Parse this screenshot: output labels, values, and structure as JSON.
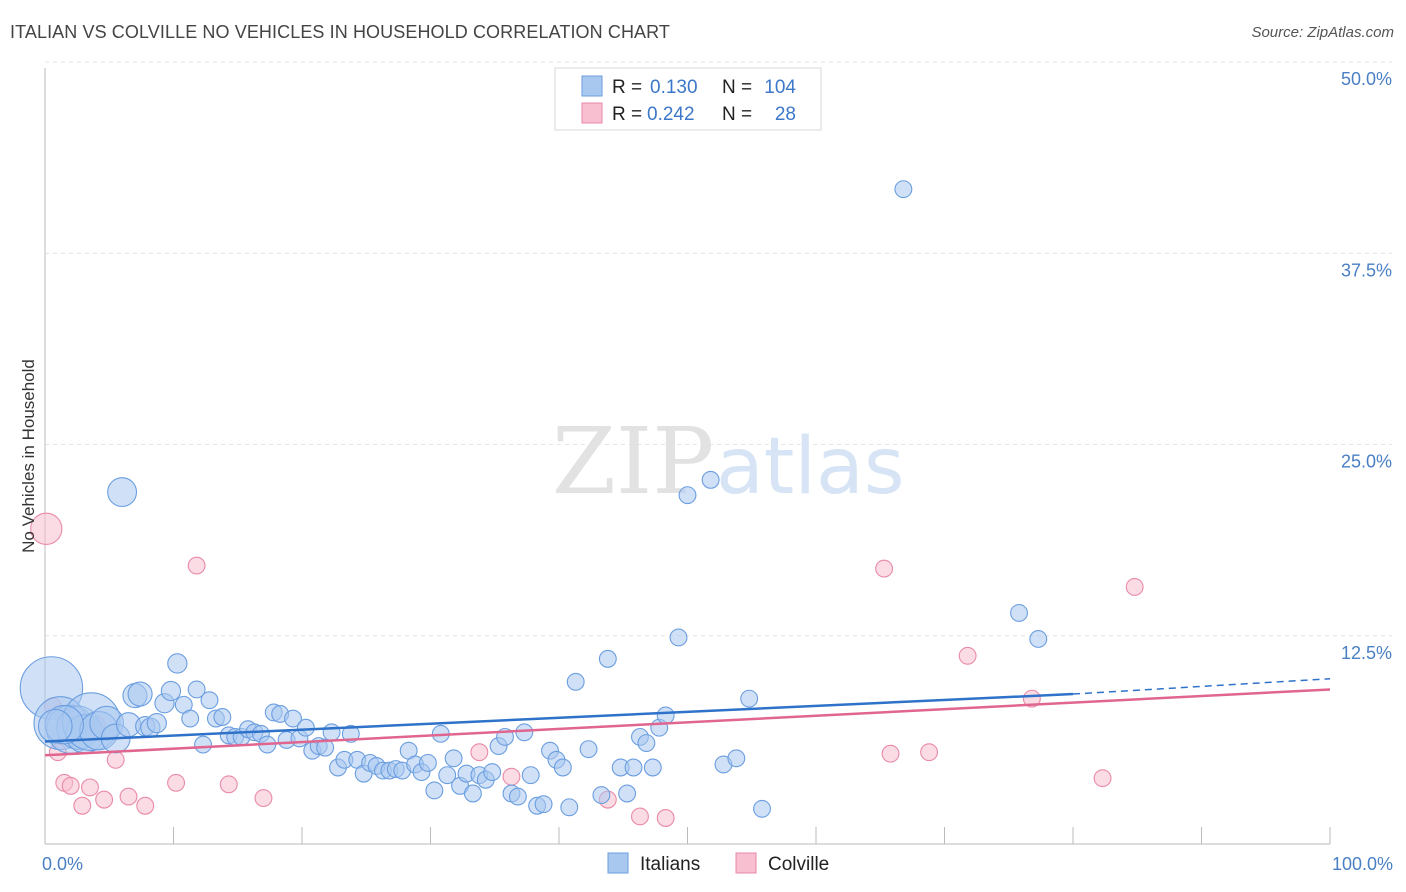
{
  "header": {
    "title": "ITALIAN VS COLVILLE NO VEHICLES IN HOUSEHOLD CORRELATION CHART",
    "source": "Source: ZipAtlas.com"
  },
  "watermark": {
    "zip": "ZIP",
    "atlas": "atlas"
  },
  "legend": {
    "rows": [
      {
        "r_label": "R =",
        "r_value": "0.130",
        "n_label": "N =",
        "n_value": "104",
        "color": "#a9c8f0",
        "stroke": "#6b9ee0"
      },
      {
        "r_label": "R =",
        "r_value": "0.242",
        "n_label": "N =",
        "n_value": "28",
        "color": "#f7bfd0",
        "stroke": "#e98aa8"
      }
    ]
  },
  "bottom_legend": [
    "Italians",
    "Colville"
  ],
  "chart_data": {
    "type": "scatter",
    "title": "ITALIAN VS COLVILLE NO VEHICLES IN HOUSEHOLD CORRELATION CHART",
    "xlabel": "",
    "ylabel": "No Vehicles in Household",
    "xlim": [
      0,
      100
    ],
    "ylim": [
      0,
      50
    ],
    "x_tick_labels": [
      "0.0%",
      "100.0%"
    ],
    "y_tick_labels": [
      "12.5%",
      "25.0%",
      "37.5%",
      "50.0%"
    ],
    "y_ticks": [
      12.5,
      25.0,
      37.5,
      50.0
    ],
    "series": [
      {
        "name": "Italians",
        "color": "#a9c8f0",
        "stroke": "#6b9ee0",
        "line_color": "#2f72c9",
        "trend": {
          "x0": 0,
          "y0": 6.7,
          "x1": 80,
          "y1": 9.8,
          "x_ext": 100,
          "y_ext": 10.8
        },
        "points": [
          [
            0.5,
            10.2,
            2.6
          ],
          [
            1.2,
            7.9,
            2.2
          ],
          [
            2.0,
            7.5,
            2.0
          ],
          [
            2.6,
            7.6,
            1.8
          ],
          [
            3.1,
            7.2,
            1.6
          ],
          [
            3.6,
            8.0,
            2.4
          ],
          [
            4.2,
            7.4,
            1.6
          ],
          [
            4.8,
            7.9,
            1.4
          ],
          [
            5.5,
            6.9,
            1.2
          ],
          [
            6.0,
            23.0,
            1.2
          ],
          [
            6.5,
            7.8,
            1.0
          ],
          [
            7.0,
            9.7,
            1.0
          ],
          [
            7.4,
            9.8,
            1.0
          ],
          [
            7.8,
            7.7,
            0.8
          ],
          [
            8.2,
            7.6,
            0.8
          ],
          [
            8.7,
            7.9,
            0.8
          ],
          [
            9.3,
            9.2,
            0.8
          ],
          [
            9.8,
            10.0,
            0.8
          ],
          [
            10.3,
            11.8,
            0.8
          ],
          [
            10.8,
            9.1,
            0.7
          ],
          [
            11.3,
            8.2,
            0.7
          ],
          [
            11.8,
            10.1,
            0.7
          ],
          [
            12.3,
            6.5,
            0.7
          ],
          [
            12.8,
            9.4,
            0.7
          ],
          [
            13.3,
            8.2,
            0.7
          ],
          [
            13.8,
            8.3,
            0.7
          ],
          [
            14.3,
            7.1,
            0.7
          ],
          [
            14.8,
            7.0,
            0.7
          ],
          [
            15.3,
            7.0,
            0.7
          ],
          [
            15.8,
            7.5,
            0.7
          ],
          [
            16.3,
            7.3,
            0.7
          ],
          [
            16.8,
            7.2,
            0.7
          ],
          [
            17.3,
            6.5,
            0.7
          ],
          [
            17.8,
            8.6,
            0.7
          ],
          [
            18.3,
            8.5,
            0.7
          ],
          [
            18.8,
            6.8,
            0.7
          ],
          [
            19.3,
            8.2,
            0.7
          ],
          [
            19.8,
            6.9,
            0.7
          ],
          [
            20.3,
            7.6,
            0.7
          ],
          [
            20.8,
            6.1,
            0.7
          ],
          [
            21.3,
            6.4,
            0.7
          ],
          [
            21.8,
            6.3,
            0.7
          ],
          [
            22.3,
            7.3,
            0.7
          ],
          [
            22.8,
            5.0,
            0.7
          ],
          [
            23.3,
            5.5,
            0.7
          ],
          [
            23.8,
            7.2,
            0.7
          ],
          [
            24.3,
            5.5,
            0.7
          ],
          [
            24.8,
            4.6,
            0.7
          ],
          [
            25.3,
            5.3,
            0.7
          ],
          [
            25.8,
            5.1,
            0.7
          ],
          [
            26.3,
            4.8,
            0.7
          ],
          [
            26.8,
            4.8,
            0.7
          ],
          [
            27.3,
            4.9,
            0.7
          ],
          [
            27.8,
            4.8,
            0.7
          ],
          [
            28.3,
            6.1,
            0.7
          ],
          [
            28.8,
            5.2,
            0.7
          ],
          [
            29.3,
            4.7,
            0.7
          ],
          [
            29.8,
            5.3,
            0.7
          ],
          [
            30.3,
            3.5,
            0.7
          ],
          [
            30.8,
            7.2,
            0.7
          ],
          [
            31.3,
            4.5,
            0.7
          ],
          [
            31.8,
            5.6,
            0.7
          ],
          [
            32.3,
            3.8,
            0.7
          ],
          [
            32.8,
            4.6,
            0.7
          ],
          [
            33.3,
            3.3,
            0.7
          ],
          [
            33.8,
            4.5,
            0.7
          ],
          [
            34.3,
            4.2,
            0.7
          ],
          [
            34.8,
            4.7,
            0.7
          ],
          [
            35.3,
            6.4,
            0.7
          ],
          [
            35.8,
            7.0,
            0.7
          ],
          [
            36.3,
            3.3,
            0.7
          ],
          [
            36.8,
            3.1,
            0.7
          ],
          [
            37.3,
            7.3,
            0.7
          ],
          [
            37.8,
            4.5,
            0.7
          ],
          [
            38.3,
            2.5,
            0.7
          ],
          [
            38.8,
            2.6,
            0.7
          ],
          [
            39.3,
            6.1,
            0.7
          ],
          [
            39.8,
            5.5,
            0.7
          ],
          [
            40.3,
            5.0,
            0.7
          ],
          [
            40.8,
            2.4,
            0.7
          ],
          [
            41.3,
            10.6,
            0.7
          ],
          [
            42.3,
            6.2,
            0.7
          ],
          [
            43.3,
            3.2,
            0.7
          ],
          [
            43.8,
            12.1,
            0.7
          ],
          [
            44.8,
            5.0,
            0.7
          ],
          [
            45.3,
            3.3,
            0.7
          ],
          [
            45.8,
            5.0,
            0.7
          ],
          [
            46.3,
            7.0,
            0.7
          ],
          [
            46.8,
            6.6,
            0.7
          ],
          [
            47.3,
            5.0,
            0.7
          ],
          [
            47.8,
            7.6,
            0.7
          ],
          [
            48.3,
            8.4,
            0.7
          ],
          [
            49.3,
            13.5,
            0.7
          ],
          [
            50.0,
            22.8,
            0.7
          ],
          [
            51.8,
            23.8,
            0.7
          ],
          [
            52.8,
            5.2,
            0.7
          ],
          [
            53.8,
            5.6,
            0.7
          ],
          [
            54.8,
            9.5,
            0.7
          ],
          [
            55.8,
            2.3,
            0.7
          ],
          [
            66.8,
            42.8,
            0.7
          ],
          [
            75.8,
            15.1,
            0.7
          ],
          [
            77.3,
            13.4,
            0.7
          ],
          [
            1.5,
            7.8,
            1.6
          ],
          [
            0.8,
            7.7,
            1.4
          ]
        ]
      },
      {
        "name": "Colville",
        "color": "#f7bfd0",
        "stroke": "#e98aa8",
        "line_color": "#e0668f",
        "trend": {
          "x0": 0,
          "y0": 5.8,
          "x1": 100,
          "y1": 10.1
        },
        "points": [
          [
            0.1,
            20.6,
            1.3
          ],
          [
            1.0,
            6.0,
            0.7
          ],
          [
            1.5,
            4.0,
            0.7
          ],
          [
            2.0,
            3.8,
            0.7
          ],
          [
            2.9,
            2.5,
            0.7
          ],
          [
            3.5,
            3.7,
            0.7
          ],
          [
            4.0,
            7.8,
            0.7
          ],
          [
            4.6,
            2.9,
            0.7
          ],
          [
            5.5,
            5.5,
            0.7
          ],
          [
            6.5,
            3.1,
            0.7
          ],
          [
            7.8,
            2.5,
            0.7
          ],
          [
            10.2,
            4.0,
            0.7
          ],
          [
            11.8,
            18.2,
            0.7
          ],
          [
            14.3,
            3.9,
            0.7
          ],
          [
            17.0,
            3.0,
            0.7
          ],
          [
            0.6,
            9.0,
            0.7
          ],
          [
            33.8,
            6.0,
            0.7
          ],
          [
            36.3,
            4.4,
            0.7
          ],
          [
            43.8,
            2.9,
            0.7
          ],
          [
            46.3,
            1.8,
            0.7
          ],
          [
            48.3,
            1.7,
            0.7
          ],
          [
            65.3,
            18.0,
            0.7
          ],
          [
            65.8,
            5.9,
            0.7
          ],
          [
            68.8,
            6.0,
            0.7
          ],
          [
            71.8,
            12.3,
            0.7
          ],
          [
            76.8,
            9.5,
            0.7
          ],
          [
            82.3,
            4.3,
            0.7
          ],
          [
            84.8,
            16.8,
            0.7
          ]
        ]
      }
    ]
  }
}
